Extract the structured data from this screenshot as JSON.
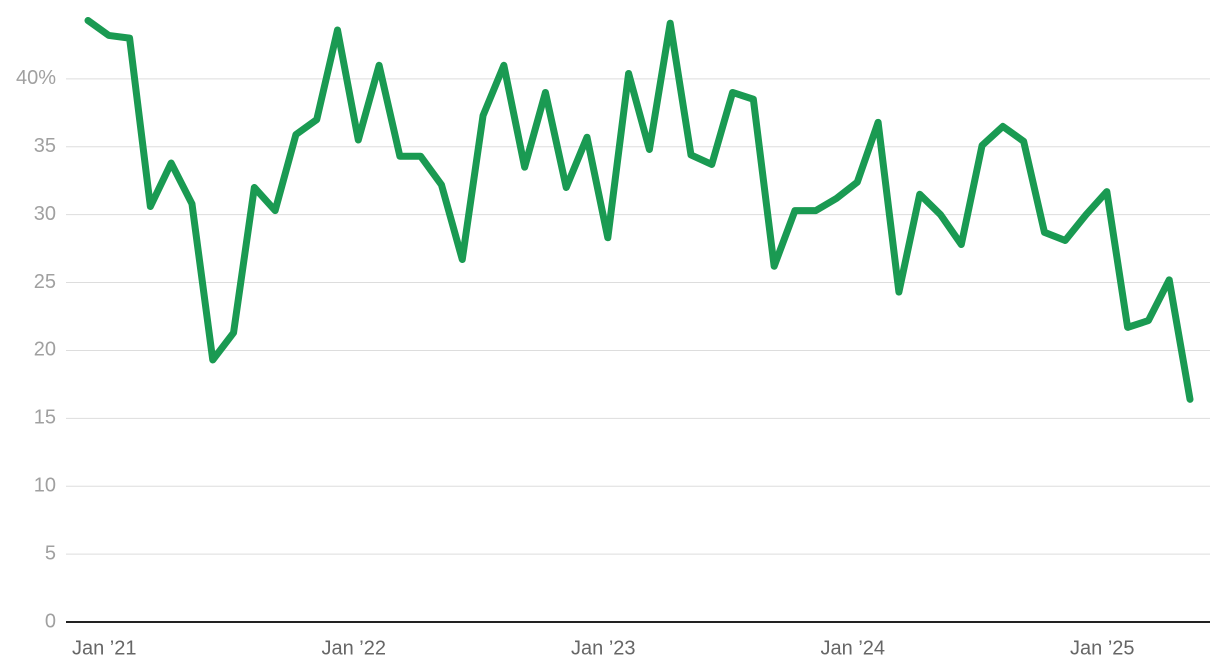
{
  "chart_data": {
    "type": "line",
    "categories": [
      "Jan ’21",
      null,
      null,
      null,
      null,
      null,
      null,
      null,
      null,
      null,
      null,
      null,
      "Jan ’22",
      null,
      null,
      null,
      null,
      null,
      null,
      null,
      null,
      null,
      null,
      null,
      "Jan ’23",
      null,
      null,
      null,
      null,
      null,
      null,
      null,
      null,
      null,
      null,
      null,
      "Jan ’24",
      null,
      null,
      null,
      null,
      null,
      null,
      null,
      null,
      null,
      null,
      null,
      "Jan ’25",
      null,
      null,
      null,
      null,
      null
    ],
    "series": [
      {
        "color": "#1a9a52",
        "values": [
          44.3,
          43.2,
          43.0,
          30.6,
          33.8,
          30.8,
          19.3,
          21.3,
          32.0,
          30.3,
          35.9,
          37.0,
          43.6,
          35.5,
          41.0,
          34.3,
          34.3,
          32.2,
          26.7,
          37.3,
          41.0,
          33.5,
          39.0,
          32.0,
          35.7,
          28.3,
          40.4,
          34.8,
          44.1,
          34.4,
          33.7,
          39.0,
          38.5,
          26.2,
          30.3,
          30.3,
          31.2,
          32.4,
          36.8,
          24.3,
          31.5,
          30.0,
          27.8,
          35.1,
          36.5,
          35.4,
          28.7,
          28.1,
          30.0,
          31.7,
          21.7,
          22.2,
          25.2,
          16.4
        ]
      }
    ],
    "ylim": [
      0,
      45
    ],
    "yticks": [
      0,
      5,
      10,
      15,
      20,
      25,
      30,
      35,
      {
        "value": 40,
        "label": "40%"
      }
    ],
    "grid": true
  }
}
